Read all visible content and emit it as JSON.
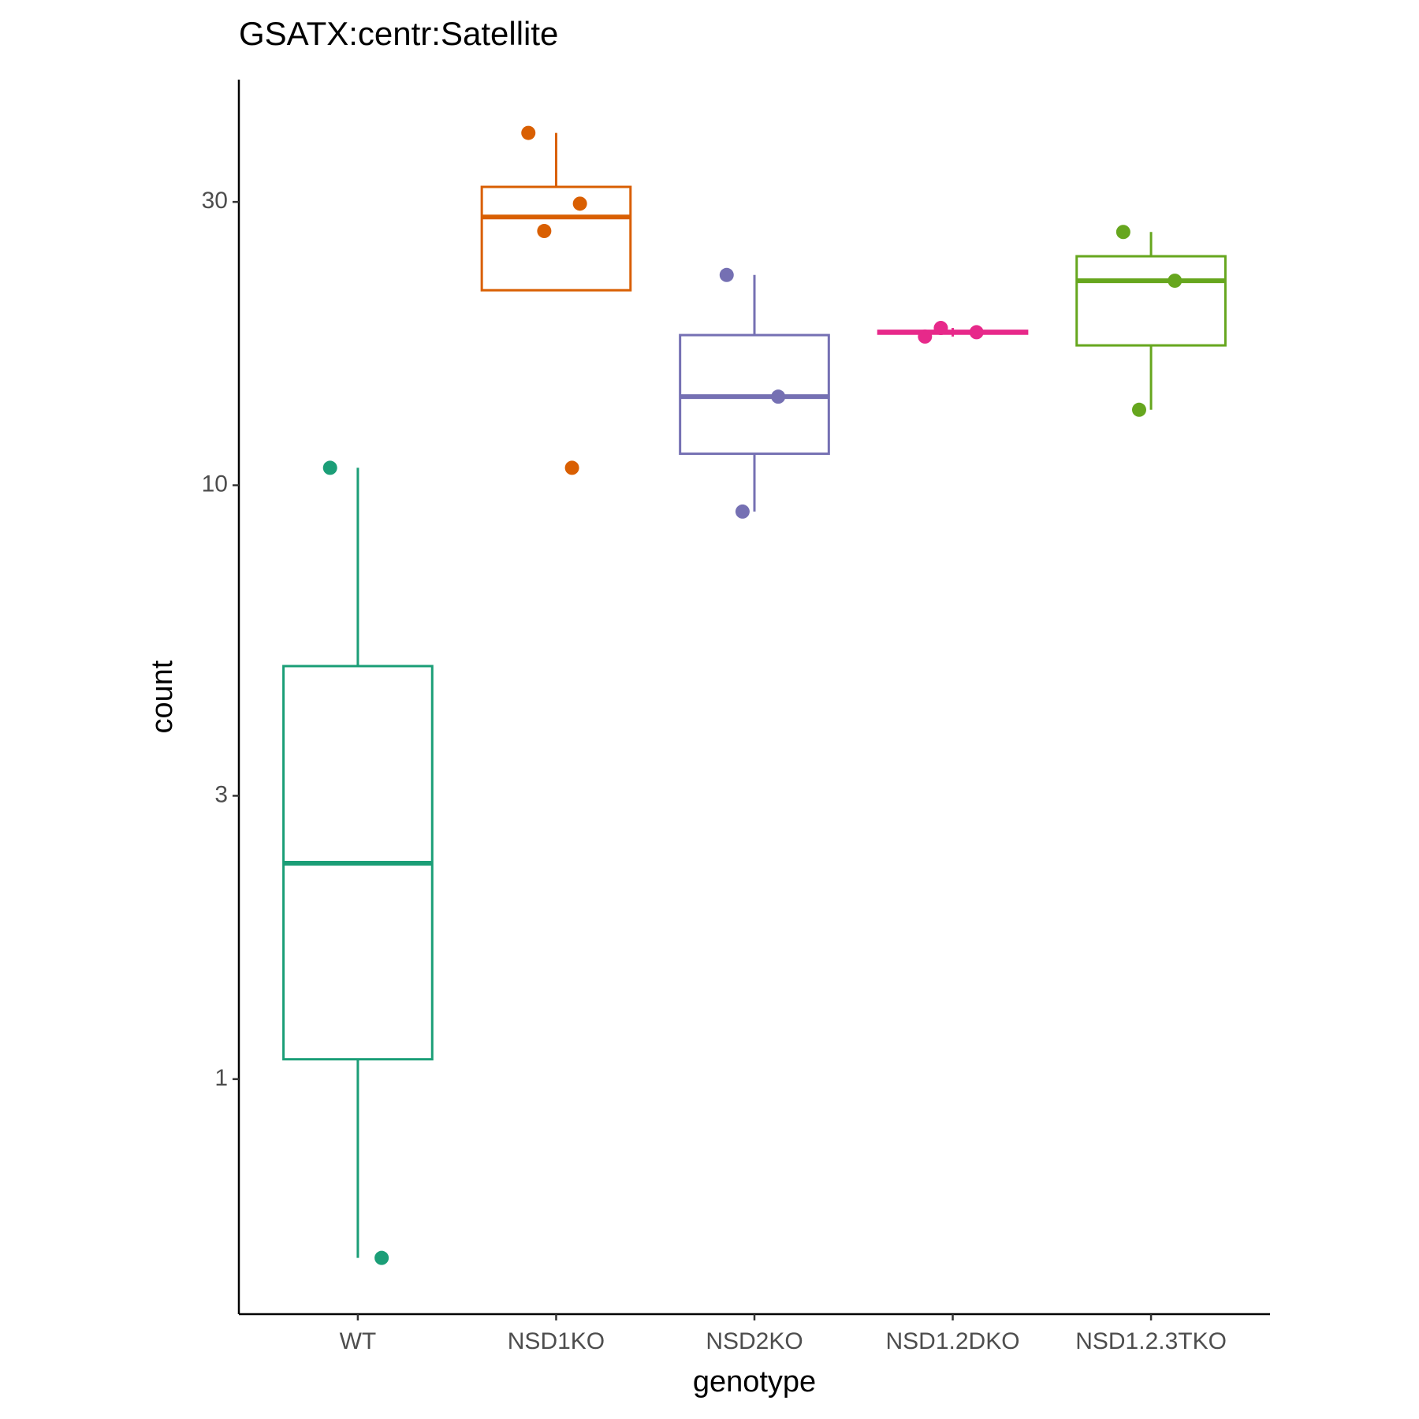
{
  "chart_data": {
    "type": "box",
    "title": "GSATX:centr:Satellite",
    "x_label": "genotype",
    "y_label": "count",
    "categories": [
      "WT",
      "NSD1KO",
      "NSD2KO",
      "NSD1.2DKO",
      "NSD1.2.3TKO"
    ],
    "boxes": [
      {
        "color": "#1b9e77",
        "min": 0.5,
        "q1": 1.08,
        "median": 2.31,
        "q3": 4.96,
        "max": 10.7,
        "points": [
          10.7,
          0.5
        ]
      },
      {
        "color": "#d95f02",
        "min": 21.3,
        "q1": 21.3,
        "median": 28.3,
        "q3": 31.8,
        "max": 39.2,
        "points": [
          39.2,
          29.8,
          26.8,
          10.7
        ]
      },
      {
        "color": "#7570b3",
        "min": 9.03,
        "q1": 11.3,
        "median": 14.1,
        "q3": 17.9,
        "max": 22.6,
        "points": [
          22.6,
          14.1,
          9.03
        ]
      },
      {
        "color": "#e7298a",
        "min": 17.8,
        "q1": 18.0,
        "median": 18.1,
        "q3": 18.2,
        "max": 18.4,
        "points": [
          17.8,
          18.1,
          18.4
        ]
      },
      {
        "color": "#66a61e",
        "min": 13.4,
        "q1": 17.2,
        "median": 22.1,
        "q3": 24.3,
        "max": 26.7,
        "points": [
          26.7,
          22.1,
          13.4
        ]
      }
    ],
    "log_scale": true,
    "ylim": [
      0.402,
      48.2
    ],
    "yticks": [
      1,
      3,
      10,
      30
    ]
  }
}
